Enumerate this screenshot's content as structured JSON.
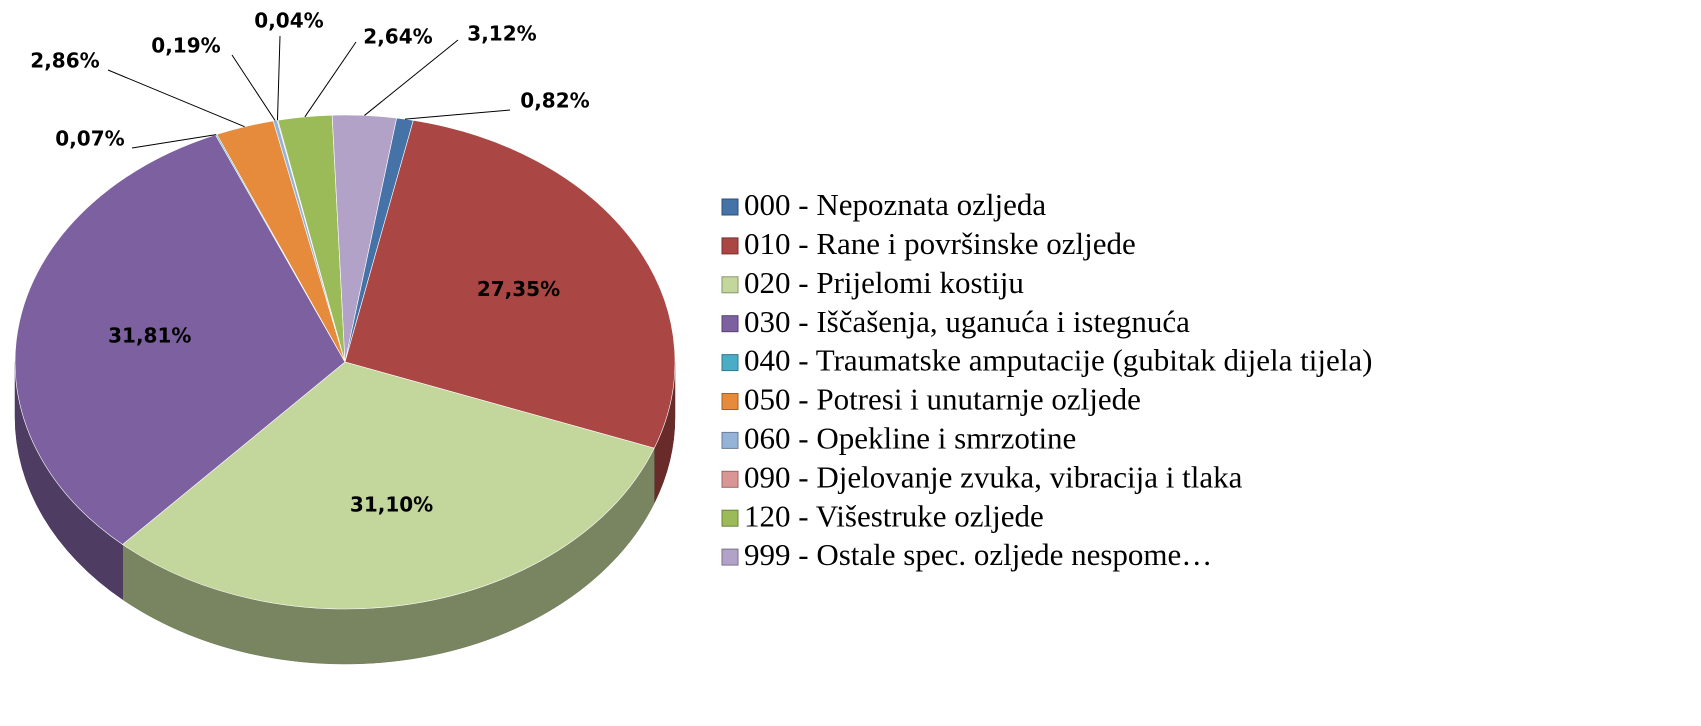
{
  "chart_data": {
    "type": "pie",
    "categories": [
      "000 - Nepoznata ozljeda",
      "010 - Rane i površinske ozljede",
      "020 - Prijelomi kostiju",
      "030 - Iščašenja, uganuća i istegnuća",
      "040 - Traumatske amputacije (gubitak dijela tijela)",
      "050 - Potresi i unutarnje ozljede",
      "060 - Opekline i smrzotine",
      "090 - Djelovanje zvuka, vibracija i tlaka",
      "120 - Višestruke ozljede",
      "999 - Ostale spec. ozljede nespome…"
    ],
    "values": [
      0.82,
      27.35,
      31.1,
      31.81,
      0.07,
      2.86,
      0.19,
      0.04,
      2.64,
      3.12
    ],
    "value_labels": [
      "0,82%",
      "27,35%",
      "31,10%",
      "31,81%",
      "0,07%",
      "2,86%",
      "0,19%",
      "0,04%",
      "2,64%",
      "3,12%"
    ],
    "colors": [
      "#4572a7",
      "#aa4643",
      "#c3d69b",
      "#7d60a0",
      "#4bacc6",
      "#e68a3c",
      "#95b3d7",
      "#d99694",
      "#9bbb59",
      "#b3a2c7"
    ],
    "legend": "right"
  }
}
